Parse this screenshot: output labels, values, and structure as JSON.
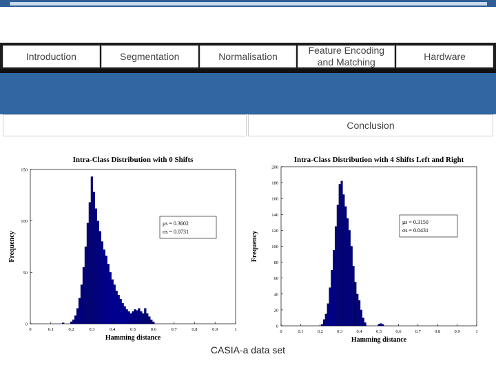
{
  "nav": {
    "items": [
      {
        "label": "Introduction"
      },
      {
        "label": "Segmentation"
      },
      {
        "label": "Normalisation"
      },
      {
        "label": "Feature Encoding\nand Matching"
      },
      {
        "label": "Hardware"
      }
    ],
    "conclusion_label": "Conclusion"
  },
  "caption": "CASIA-a data set",
  "colors": {
    "bars": "#00008b",
    "blue_band": "#3067a2"
  },
  "chart_data": [
    {
      "type": "bar",
      "title": "Intra-Class Distribution with 0 Shifts",
      "xlabel": "Hamming distance",
      "ylabel": "Frequency",
      "xlim": [
        0,
        1
      ],
      "ylim": [
        0,
        150
      ],
      "xticks": [
        "0",
        "0.1",
        "0.2",
        "0.3",
        "0.4",
        "0.5",
        "0.6",
        "0.7",
        "0.8",
        "0.9",
        "1"
      ],
      "yticks": [
        "0",
        "50",
        "100",
        "150"
      ],
      "annotation": [
        "μs = 0.3602",
        "σs = 0.0731"
      ],
      "x": [
        0.16,
        0.2,
        0.21,
        0.22,
        0.23,
        0.24,
        0.25,
        0.26,
        0.27,
        0.28,
        0.29,
        0.3,
        0.31,
        0.32,
        0.33,
        0.34,
        0.35,
        0.36,
        0.37,
        0.38,
        0.39,
        0.4,
        0.41,
        0.42,
        0.43,
        0.44,
        0.45,
        0.46,
        0.47,
        0.48,
        0.49,
        0.5,
        0.51,
        0.52,
        0.53,
        0.54,
        0.55,
        0.56,
        0.57,
        0.58,
        0.59,
        0.6
      ],
      "values": [
        1,
        2,
        4,
        8,
        15,
        25,
        38,
        55,
        75,
        98,
        118,
        143,
        128,
        112,
        100,
        90,
        80,
        72,
        66,
        58,
        50,
        43,
        38,
        32,
        28,
        24,
        20,
        17,
        14,
        12,
        10,
        12,
        14,
        13,
        15,
        12,
        10,
        15,
        10,
        7,
        4,
        2
      ]
    },
    {
      "type": "bar",
      "title": "Intra-Class Distribution with 4 Shifts Left and Right",
      "xlabel": "Hamming distance",
      "ylabel": "Frequency",
      "xlim": [
        0,
        1
      ],
      "ylim": [
        0,
        200
      ],
      "xticks": [
        "0",
        "0.1",
        "0.2",
        "0.3",
        "0.4",
        "0.5",
        "0.6",
        "0.7",
        "0.8",
        "0.9",
        "1"
      ],
      "yticks": [
        "0",
        "20",
        "40",
        "60",
        "80",
        "100",
        "120",
        "140",
        "160",
        "180",
        "200"
      ],
      "annotation": [
        "μs = 0.3150",
        "σs = 0.0431"
      ],
      "x": [
        0.21,
        0.22,
        0.23,
        0.24,
        0.25,
        0.26,
        0.27,
        0.28,
        0.29,
        0.3,
        0.31,
        0.32,
        0.33,
        0.34,
        0.35,
        0.36,
        0.37,
        0.38,
        0.39,
        0.4,
        0.41,
        0.42,
        0.43,
        0.5,
        0.51,
        0.52
      ],
      "values": [
        2,
        8,
        15,
        28,
        48,
        70,
        95,
        125,
        152,
        178,
        182,
        165,
        150,
        135,
        120,
        100,
        75,
        55,
        40,
        32,
        20,
        10,
        4,
        2,
        3,
        2
      ]
    }
  ]
}
